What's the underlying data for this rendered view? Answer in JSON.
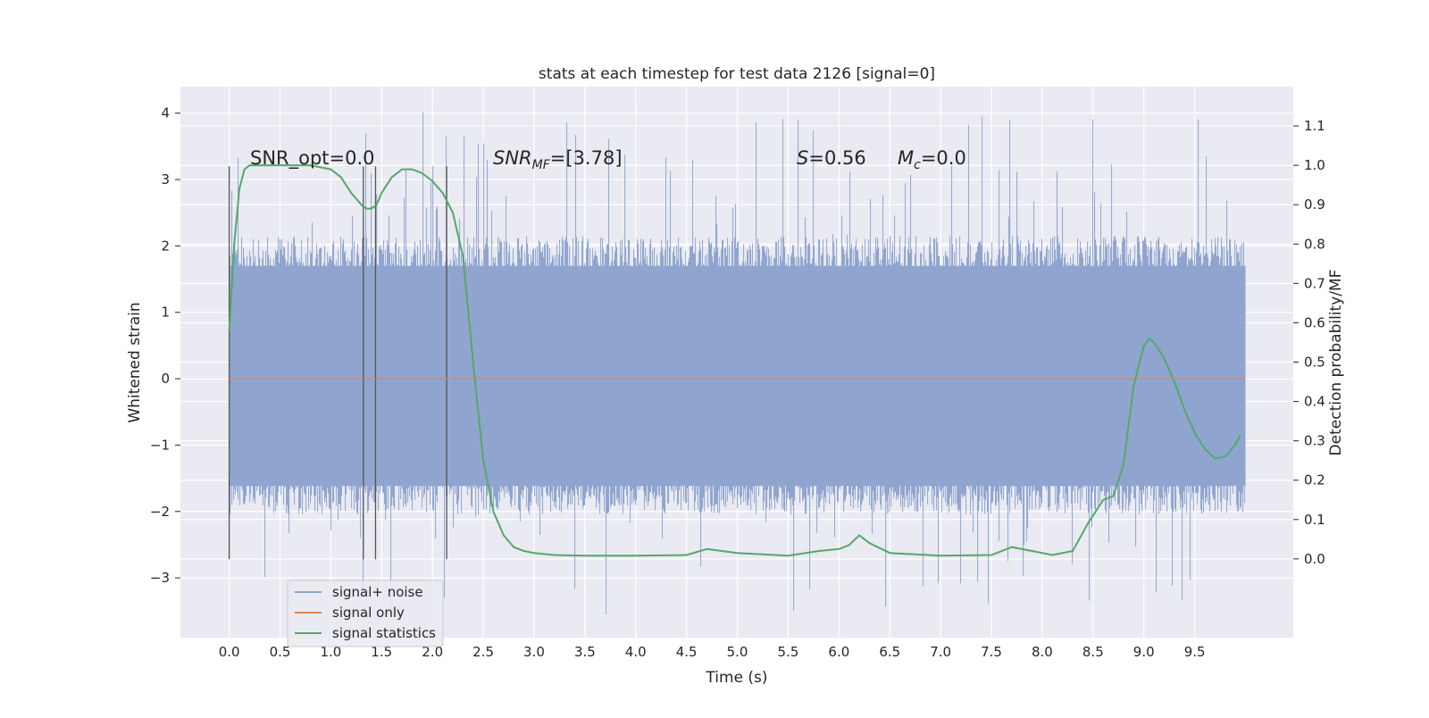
{
  "chart_data": {
    "type": "line",
    "title": "stats at each timestep for test data 2126 [signal=0]",
    "xlabel": "Time (s)",
    "ylabel": "Whitened strain",
    "ylabel_right": "Detection probability/MF",
    "xlim": [
      -0.48,
      10.47
    ],
    "ylim": [
      -3.9,
      4.4
    ],
    "ylim_right": [
      -0.2,
      1.2
    ],
    "x_ticks": [
      "0.0",
      "0.5",
      "1.0",
      "1.5",
      "2.0",
      "2.5",
      "3.0",
      "3.5",
      "4.0",
      "4.5",
      "5.0",
      "5.5",
      "6.0",
      "6.5",
      "7.0",
      "7.5",
      "8.0",
      "8.5",
      "9.0",
      "9.5"
    ],
    "y_ticks": [
      "−3",
      "−2",
      "−1",
      "0",
      "1",
      "2",
      "3",
      "4"
    ],
    "y_ticks_right": [
      "0.0",
      "0.1",
      "0.2",
      "0.3",
      "0.4",
      "0.5",
      "0.6",
      "0.7",
      "0.8",
      "0.9",
      "1.0",
      "1.1"
    ],
    "grid": true,
    "legend_position": "lower-left",
    "annotations": {
      "snr_opt": "SNR_opt=0.0",
      "snr_mf_var": "SNR",
      "snr_mf_sub": "MF",
      "snr_mf_val": "=[3.78]",
      "s_var": "S",
      "s_val": "=0.56",
      "mc_var": "M",
      "mc_sub": "c",
      "mc_val": "=0.0"
    },
    "vertical_markers": [
      0.0,
      1.32,
      1.44,
      2.14
    ],
    "series": [
      {
        "name": "signal+ noise",
        "color": "#8fa5cf",
        "axis": "left",
        "x_range": [
          0.0,
          10.0
        ],
        "typical_band": [
          -1.9,
          2.0
        ],
        "extremes": [
          -3.55,
          4.05
        ]
      },
      {
        "name": "signal only",
        "color": "#dd8452",
        "axis": "left",
        "x": [
          0.0,
          10.0
        ],
        "y": [
          0.0,
          0.0
        ]
      },
      {
        "name": "signal statistics",
        "color": "#55a868",
        "axis": "right",
        "x": [
          0.0,
          0.05,
          0.1,
          0.15,
          0.2,
          0.3,
          0.5,
          0.8,
          1.0,
          1.1,
          1.2,
          1.3,
          1.35,
          1.4,
          1.45,
          1.5,
          1.6,
          1.7,
          1.8,
          1.9,
          2.0,
          2.1,
          2.2,
          2.3,
          2.4,
          2.5,
          2.6,
          2.7,
          2.8,
          2.9,
          3.0,
          3.2,
          3.5,
          4.0,
          4.5,
          4.7,
          5.0,
          5.5,
          5.8,
          6.0,
          6.1,
          6.2,
          6.3,
          6.5,
          7.0,
          7.5,
          7.7,
          7.9,
          8.1,
          8.3,
          8.45,
          8.6,
          8.7,
          8.8,
          8.9,
          9.0,
          9.05,
          9.1,
          9.2,
          9.3,
          9.4,
          9.5,
          9.6,
          9.7,
          9.8,
          9.9,
          9.95
        ],
        "y": [
          0.58,
          0.8,
          0.94,
          0.99,
          1.0,
          1.0,
          1.0,
          1.0,
          0.99,
          0.97,
          0.93,
          0.9,
          0.89,
          0.89,
          0.9,
          0.93,
          0.97,
          0.99,
          0.99,
          0.98,
          0.96,
          0.93,
          0.88,
          0.77,
          0.5,
          0.25,
          0.12,
          0.06,
          0.03,
          0.02,
          0.015,
          0.01,
          0.008,
          0.008,
          0.01,
          0.025,
          0.015,
          0.008,
          0.02,
          0.025,
          0.035,
          0.06,
          0.04,
          0.015,
          0.008,
          0.01,
          0.03,
          0.02,
          0.01,
          0.02,
          0.09,
          0.15,
          0.16,
          0.24,
          0.44,
          0.54,
          0.56,
          0.55,
          0.51,
          0.45,
          0.38,
          0.32,
          0.28,
          0.255,
          0.26,
          0.29,
          0.315
        ]
      }
    ]
  }
}
